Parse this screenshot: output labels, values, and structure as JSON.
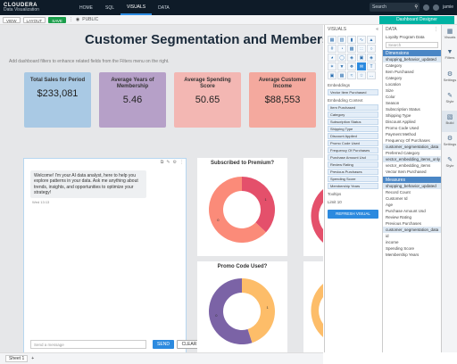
{
  "app": {
    "logo": "CLOUDERA",
    "subtitle": "Data Visualization"
  },
  "nav": {
    "items": [
      "HOME",
      "SQL",
      "VISUALS",
      "DATA"
    ],
    "active": "VISUALS"
  },
  "topbar": {
    "search_placeholder": "Search",
    "user": "jamie"
  },
  "toolbar": {
    "view": "VIEW",
    "layout": "LAYOUT",
    "save": "SAVE",
    "visibility": "PUBLIC",
    "designer": "Dashboard Designer"
  },
  "dashboard": {
    "title": "Customer Segmentation and Membership Insights",
    "subtitle": "Add dashboard filters to enhance related fields from the Filters menu on the right.",
    "kpis": [
      {
        "title": "Total Sales for Period",
        "value": "$233,081"
      },
      {
        "title": "Average Years of Membership",
        "value": "5.46"
      },
      {
        "title": "Average Spending Score",
        "value": "50.65"
      },
      {
        "title": "Average Customer Income",
        "value": "$88,553"
      }
    ]
  },
  "chat": {
    "message": "Welcome! I'm your AI data analyst, here to help you explore patterns in your data. Ask me anything about trends, insights, and opportunities to optimize your strategy!",
    "time": "Wed 13:13",
    "input_placeholder": "Send a message",
    "send": "SEND",
    "clear": "CLEAR"
  },
  "charts": {
    "subscribed_title": "Subscribed to Premium?",
    "promo_title": "Promo Code Used?"
  },
  "chart_data": [
    {
      "type": "pie",
      "title": "Subscribed to Premium?",
      "categories": [
        "1",
        "0"
      ],
      "values": [
        37,
        63
      ],
      "colors": [
        "#e4506b",
        "#fb8b79"
      ]
    },
    {
      "type": "pie",
      "title": "Promo Code Used?",
      "categories": [
        "1",
        "0"
      ],
      "values": [
        45,
        55
      ],
      "colors": [
        "#fdbd69",
        "#7b63a6"
      ]
    }
  ],
  "sheets": {
    "tab": "Sheet 1"
  },
  "visuals": {
    "header": "VISUALS",
    "shelf_label": "Embeddings",
    "shelf_item": "Vector Item Purchased",
    "shelf2_label": "Embedding Context",
    "fields": [
      "Item Purchased",
      "Category",
      "Subscription Status",
      "Shipping Type",
      "Discount Applied",
      "Promo Code Used",
      "Frequency Of Purchases",
      "Purchase Amount Usd",
      "Review Rating",
      "Previous Purchases",
      "Spending Score",
      "Membership Years"
    ],
    "tooltips": "Tooltips",
    "limit_label": "Limit",
    "limit_value": "10",
    "refresh": "REFRESH VISUAL"
  },
  "datapanel": {
    "header": "DATA",
    "dataset": "Loyalty Program Data",
    "search": "Search",
    "dimensions": "Dimensions",
    "table1": "shopping_behavior_updated",
    "dims": [
      "Category",
      "Item Purchased",
      "Category",
      "Location",
      "Size",
      "Color",
      "Season",
      "Subscription Status",
      "Shipping Type",
      "Discount Applied",
      "Promo Code Used",
      "Payment Method",
      "Frequency Of Purchases"
    ],
    "table2": "customer_segmentation_data",
    "dims2": [
      "Preferred Category"
    ],
    "table3": "vector_embedding_items_only",
    "dims3": [
      "vector_embedding_items",
      "Vector Item Purchased"
    ],
    "measures": "Measures",
    "table4": "shopping_behavior_updated",
    "meas": [
      "Record Count",
      "Customer Id",
      "Age",
      "Purchase Amount Usd",
      "Review Rating",
      "Previous Purchases"
    ],
    "table5": "customer_segmentation_data",
    "meas2": [
      "id",
      "income",
      "Spending Score",
      "Membership Years"
    ]
  },
  "rightrail": {
    "items": [
      "Visuals",
      "Filters",
      "Settings",
      "Style",
      "Build",
      "Settings",
      "Style"
    ]
  }
}
